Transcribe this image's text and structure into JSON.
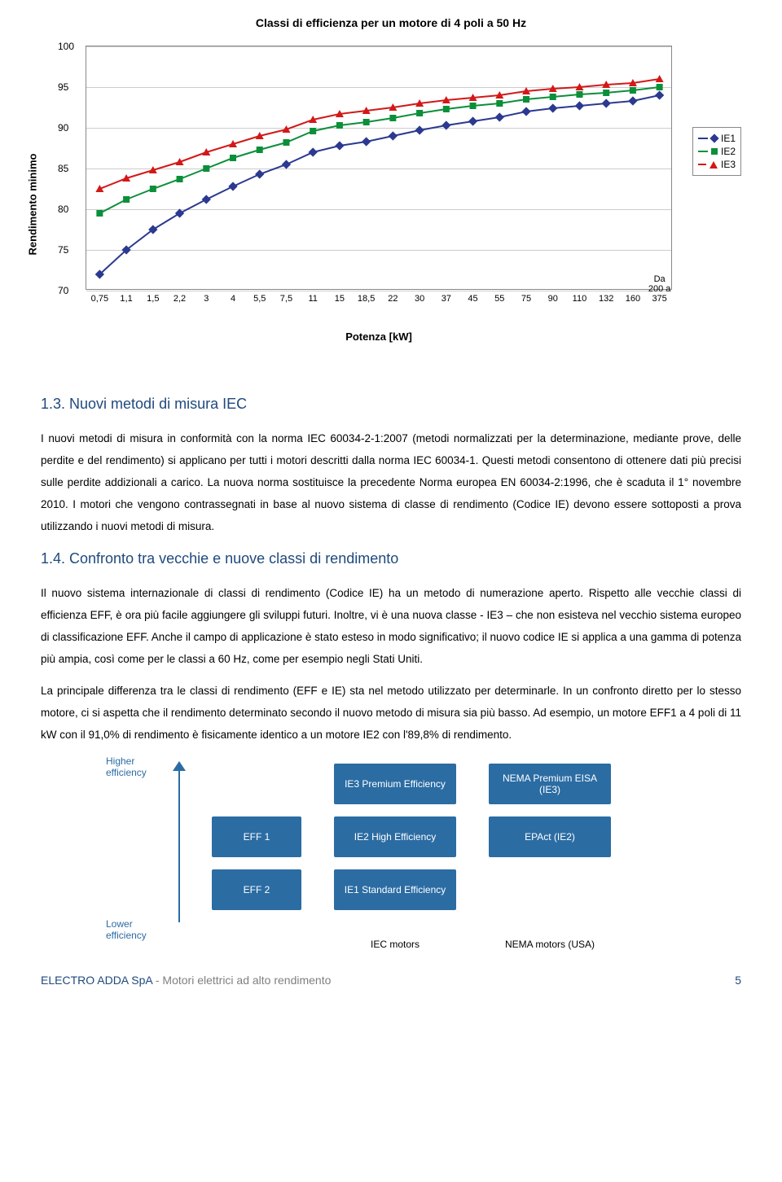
{
  "chart": {
    "title": "Classi di efficienza per un motore di 4 poli a 50 Hz",
    "ylabel": "Rendimento minimo",
    "xlabel": "Potenza [kW]",
    "ylim": [
      70,
      100
    ],
    "yticks": [
      70,
      75,
      80,
      85,
      90,
      95,
      100
    ],
    "xcategories": [
      "0,75",
      "1,1",
      "1,5",
      "2,2",
      "3",
      "4",
      "5,5",
      "7,5",
      "11",
      "15",
      "18,5",
      "22",
      "30",
      "37",
      "45",
      "55",
      "75",
      "90",
      "110",
      "132",
      "160",
      "Da 200 a 375"
    ],
    "grid_color": "#cccccc",
    "background_color": "#ffffff",
    "border_color": "#888888",
    "tick_fontsize": 12,
    "label_fontsize": 13,
    "title_fontsize": 14,
    "series": [
      {
        "name": "IE1",
        "color": "#2b3990",
        "marker": "diamond",
        "values": [
          72.0,
          75.0,
          77.5,
          79.5,
          81.2,
          82.8,
          84.3,
          85.5,
          87.0,
          87.8,
          88.3,
          89.0,
          89.7,
          90.3,
          90.8,
          91.3,
          92.0,
          92.4,
          92.7,
          93.0,
          93.3,
          94.0
        ]
      },
      {
        "name": "IE2",
        "color": "#0b8f3a",
        "marker": "square",
        "values": [
          79.5,
          81.2,
          82.5,
          83.7,
          85.0,
          86.3,
          87.3,
          88.2,
          89.6,
          90.3,
          90.7,
          91.2,
          91.8,
          92.3,
          92.7,
          93.0,
          93.5,
          93.8,
          94.1,
          94.3,
          94.6,
          95.0
        ]
      },
      {
        "name": "IE3",
        "color": "#d31818",
        "marker": "triangle",
        "values": [
          82.5,
          83.8,
          84.8,
          85.8,
          87.0,
          88.0,
          89.0,
          89.8,
          91.0,
          91.7,
          92.1,
          92.5,
          93.0,
          93.4,
          93.7,
          94.0,
          94.5,
          94.8,
          95.0,
          95.3,
          95.5,
          96.0
        ]
      }
    ]
  },
  "section1": {
    "heading": "1.3. Nuovi metodi di misura IEC",
    "para": "I nuovi metodi di misura in conformità con la norma IEC 60034-2-1:2007 (metodi normalizzati per la determinazione, mediante prove, delle perdite e del rendimento) si applicano per tutti i motori descritti dalla norma IEC 60034-1. Questi metodi consentono di ottenere dati più precisi sulle perdite addizionali a carico. La nuova norma sostituisce la precedente Norma europea EN 60034-2:1996, che è scaduta il 1° novembre 2010. I motori che vengono contrassegnati in base al nuovo sistema di classe di rendimento (Codice IE) devono essere sottoposti a prova utilizzando i nuovi metodi di misura."
  },
  "section2": {
    "heading": "1.4. Confronto tra vecchie e nuove classi di rendimento",
    "para1": "Il nuovo sistema internazionale di classi di rendimento (Codice IE) ha un metodo di numerazione aperto. Rispetto alle vecchie classi di efficienza EFF, è ora più facile aggiungere gli sviluppi futuri. Inoltre, vi è una nuova classe - IE3 – che non esisteva nel vecchio sistema europeo di classificazione EFF. Anche il campo di applicazione è stato esteso in modo significativo; il nuovo codice IE si applica a una gamma di potenza più ampia, così come per le classi a 60 Hz, come per esempio negli Stati Uniti.",
    "para2": "La principale differenza tra le classi di rendimento (EFF e IE) sta nel metodo utilizzato per determinarle. In un confronto diretto per lo stesso motore, ci si aspetta che il rendimento determinato secondo il nuovo metodo di misura sia più basso. Ad esempio, un motore EFF1 a 4 poli di 11 kW con il 91,0% di rendimento è fisicamente identico a un motore IE2 con l'89,8% di rendimento."
  },
  "diagram": {
    "higher_label": "Higher efficiency",
    "lower_label": "Lower efficiency",
    "col_iec_label": "IEC motors",
    "col_nema_label": "NEMA motors (USA)",
    "block_color": "#2b6ca3",
    "text_color": "#ffffff",
    "label_color": "#2b6ca3",
    "blocks": {
      "eff1": "EFF 1",
      "eff2": "EFF 2",
      "ie3": "IE3 Premium Efficiency",
      "ie2": "IE2 High Efficiency",
      "ie1": "IE1 Standard Efficiency",
      "nema3": "NEMA Premium EISA (IE3)",
      "nema2": "EPAct (IE2)"
    }
  },
  "footer": {
    "company": "ELECTRO ADDA SpA",
    "sep": " - ",
    "subtitle": "Motori elettrici ad alto rendimento",
    "page": "5"
  }
}
